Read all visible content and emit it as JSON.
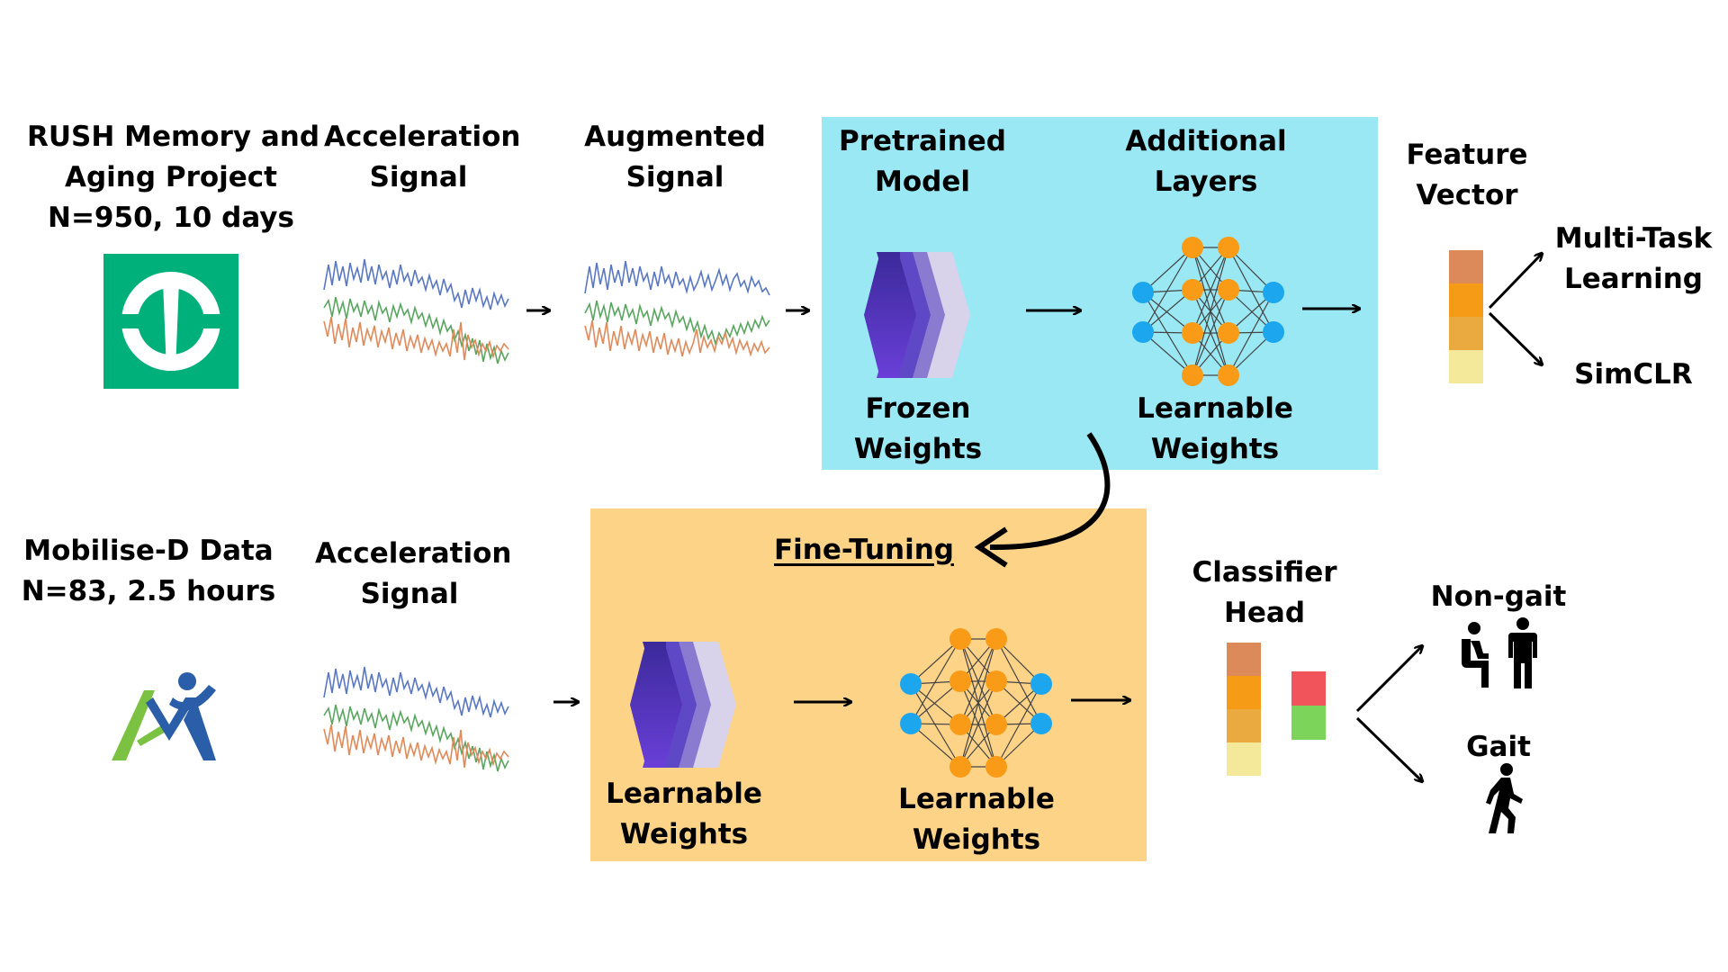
{
  "top": {
    "dataset": {
      "line1": "RUSH Memory and",
      "line2": "Aging Project",
      "line3": "N=950, 10 days"
    },
    "signal": {
      "line1": "Acceleration",
      "line2": "Signal"
    },
    "augmented": {
      "line1": "Augmented",
      "line2": "Signal"
    },
    "pretrained": {
      "line1": "Pretrained",
      "line2": "Model"
    },
    "additional": {
      "line1": "Additional",
      "line2": "Layers"
    },
    "frozen": {
      "line1": "Frozen",
      "line2": "Weights"
    },
    "learnable": {
      "line1": "Learnable",
      "line2": "Weights"
    },
    "feature": {
      "line1": "Feature",
      "line2": "Vector"
    },
    "multitask": {
      "line1": "Multi-Task",
      "line2": "Learning"
    },
    "simclr": "SimCLR"
  },
  "bottom": {
    "dataset": {
      "line1": "Mobilise-D Data",
      "line2": "N=83, 2.5 hours"
    },
    "signal": {
      "line1": "Acceleration",
      "line2": "Signal"
    },
    "finetuning": "Fine-Tuning",
    "learnable_left": {
      "line1": "Learnable",
      "line2": "Weights"
    },
    "learnable_right": {
      "line1": "Learnable",
      "line2": "Weights"
    },
    "classifier": {
      "line1": "Classifier",
      "line2": "Head"
    },
    "nongait": "Non-gait",
    "gait": "Gait"
  },
  "colors": {
    "pretrain_panel": "#99e8f3",
    "finetune_panel": "#fdd388",
    "rush_logo": "#00b07a",
    "node_orange": "#f99b16",
    "node_blue": "#1ca6ee",
    "signal_blue": "#5a78c0",
    "signal_green": "#5aa560",
    "signal_orange": "#e08a5a"
  },
  "icons": [
    "rush-logo",
    "mobilise-d-logo",
    "frozen-layers-icon",
    "neural-network-icon",
    "sitting-person-icon",
    "standing-person-icon",
    "walking-person-icon"
  ]
}
